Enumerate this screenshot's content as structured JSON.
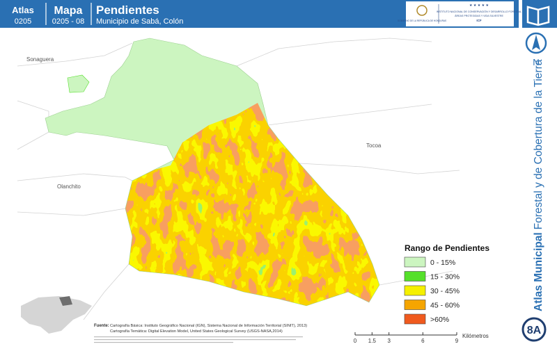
{
  "header": {
    "atlas_label": "Atlas",
    "atlas_code": "0205",
    "map_label": "Mapa",
    "map_code": "0205 - 08",
    "title": "Pendientes",
    "subtitle": "Municipio de Sabá, Colón"
  },
  "logos": {
    "government": "GOBIERNO DE LA REPÚBLICA DE HONDURAS",
    "institute": "INSTITUTO NACIONAL DE CONSERVACIÓN Y DESARROLLO FORESTAL",
    "institute_sub": "ÁREAS PROTEGIDAS Y VIDA SILVESTRE",
    "acronym": "ICF"
  },
  "places": [
    "Sonaguera",
    "Tocoa",
    "Olanchito"
  ],
  "legend": {
    "title": "Rango de Pendientes",
    "items": [
      {
        "label": "0 - 15%",
        "color": "#ccf5c0"
      },
      {
        "label": "15 - 30%",
        "color": "#55e02a"
      },
      {
        "label": "30 - 45%",
        "color": "#f5f000"
      },
      {
        "label": "45 - 60%",
        "color": "#f5a500"
      },
      {
        "label": ">60%",
        "color": "#f05a1e"
      }
    ]
  },
  "sidebar": {
    "north": "N",
    "title_bold": "Atlas Municipal",
    "title_rest": "Forestal y de Cobertura de la Tierra",
    "badge": "8A"
  },
  "sources": {
    "label": "Fuente:",
    "lines": [
      "Cartografía Básica: Instituto Geográfico Nacional (IGN), Sistema Nacional de Información Territorial (SINIT), 2013)",
      "Cartografía Temática: Digital Elevation Model, United States Geological Survey (USGS-NASA,2014)"
    ]
  },
  "scale": {
    "ticks": [
      0,
      1.5,
      3,
      6,
      9
    ],
    "unit": "Kilómetros"
  }
}
